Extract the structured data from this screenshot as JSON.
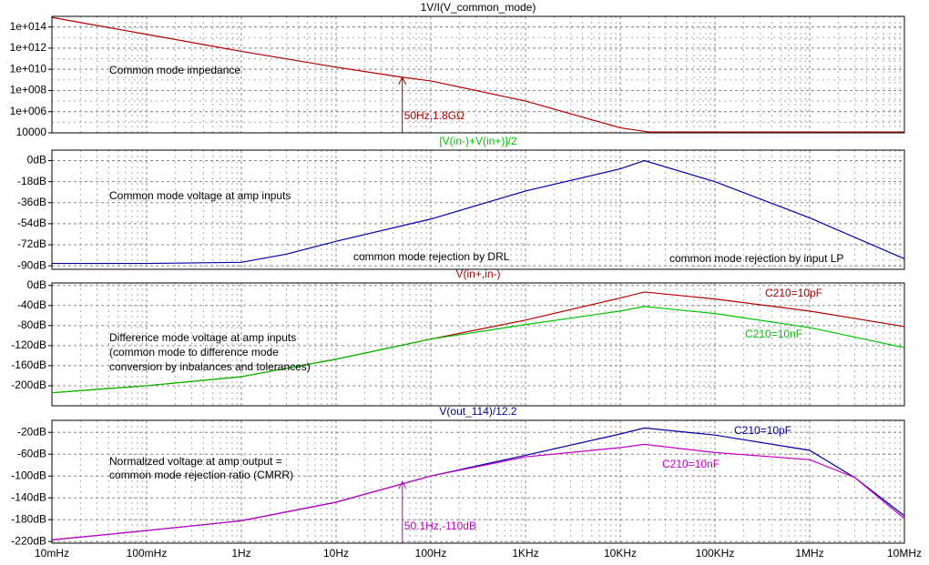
{
  "chart_data": [
    {
      "type": "line",
      "title": "1V/I(V_common_mode)",
      "title_color": "#000000",
      "xscale": "log",
      "yscale": "log",
      "grid": true,
      "xlim": [
        0.01,
        10000000
      ],
      "ylim": [
        10000,
        1000000000000000.0
      ],
      "yticks": [
        {
          "value": 100000000000000.0,
          "label": "1e+014"
        },
        {
          "value": 1000000000000.0,
          "label": "1e+012"
        },
        {
          "value": 10000000000.0,
          "label": "1e+010"
        },
        {
          "value": 100000000.0,
          "label": "1e+008"
        },
        {
          "value": 1000000.0,
          "label": "1e+006"
        },
        10000
      ],
      "x": [
        0.01,
        0.1,
        1,
        10,
        50,
        100,
        1000,
        10000,
        20000,
        100000,
        1000000,
        10000000
      ],
      "series": [
        {
          "name": "1V/I(V_common_mode)",
          "color": "#b00000",
          "values": [
            800000000000000.0,
            20000000000000.0,
            500000000000.0,
            16000000000.0,
            1800000000.0,
            800000000.0,
            10000000.0,
            30000,
            12000,
            12000,
            12000,
            12000
          ]
        }
      ],
      "annotations": [
        "Common mode impedance"
      ],
      "marker": {
        "x": 50,
        "y": 1800000000.0,
        "label": "50Hz,1.8GΩ",
        "color": "#b00000"
      }
    },
    {
      "type": "line",
      "title": "[V(in-)+V(in+)]/2",
      "title_color": "#00c000",
      "xscale": "log",
      "grid": true,
      "xlim": [
        0.01,
        10000000
      ],
      "ylim": [
        -93,
        9
      ],
      "yticks": [
        {
          "value": 0,
          "label": "0dB"
        },
        {
          "value": -18,
          "label": "-18dB"
        },
        {
          "value": -36,
          "label": "-36dB"
        },
        {
          "value": -54,
          "label": "-54dB"
        },
        {
          "value": -72,
          "label": "-72dB"
        },
        {
          "value": -90,
          "label": "-90dB"
        }
      ],
      "x": [
        0.01,
        0.1,
        1,
        3,
        10,
        100,
        1000,
        10000,
        18000,
        100000,
        1000000,
        10000000
      ],
      "series": [
        {
          "name": "[V(in-)+V(in+)]/2",
          "color": "#0000a0",
          "values": [
            -88,
            -88,
            -87,
            -80,
            -69,
            -50,
            -26,
            -7,
            0,
            -18,
            -49,
            -84
          ]
        }
      ],
      "annotations": [
        "Common mode voltage at amp inputs",
        "common mode rejection by DRL",
        "common mode rejection by input LP"
      ]
    },
    {
      "type": "line",
      "title": "V(in+,in-)",
      "title_color": "#b00000",
      "xscale": "log",
      "grid": true,
      "legend": true,
      "xlim": [
        0.01,
        10000000
      ],
      "ylim": [
        -240,
        5
      ],
      "yticks": [
        {
          "value": 0,
          "label": "0dB"
        },
        {
          "value": -40,
          "label": "-40dB"
        },
        {
          "value": -80,
          "label": "-80dB"
        },
        {
          "value": -120,
          "label": "-120dB"
        },
        {
          "value": -160,
          "label": "-160dB"
        },
        {
          "value": -200,
          "label": "-200dB"
        }
      ],
      "x": [
        0.01,
        0.1,
        1,
        10,
        100,
        1000,
        10000,
        18000,
        100000,
        1000000,
        10000000
      ],
      "series": [
        {
          "name": "C210=10pF",
          "color": "#b00000",
          "values": [
            -214,
            -200,
            -182,
            -147,
            -107,
            -69,
            -25,
            -13,
            -27,
            -51,
            -82
          ]
        },
        {
          "name": "C210=10nF",
          "color": "#00c000",
          "values": [
            -214,
            -200,
            -182,
            -147,
            -107,
            -78,
            -51,
            -42,
            -56,
            -84,
            -124
          ]
        }
      ],
      "annotations": [
        "Difference mode voltage at amp inputs",
        "(common mode to difference mode",
        "conversion by inbalances and tolerances)"
      ]
    },
    {
      "type": "line",
      "title": "V(out_114)/12.2",
      "title_color": "#0000a0",
      "xscale": "log",
      "grid": true,
      "legend": true,
      "xlim": [
        0.01,
        10000000
      ],
      "ylim": [
        -223,
        2
      ],
      "xticks": [
        {
          "value": 0.01,
          "label": "10mHz"
        },
        {
          "value": 0.1,
          "label": "100mHz"
        },
        {
          "value": 1,
          "label": "1Hz"
        },
        {
          "value": 10,
          "label": "10Hz"
        },
        {
          "value": 100,
          "label": "100Hz"
        },
        {
          "value": 1000,
          "label": "1KHz"
        },
        {
          "value": 10000,
          "label": "10KHz"
        },
        {
          "value": 100000,
          "label": "100KHz"
        },
        {
          "value": 1000000,
          "label": "1MHz"
        },
        {
          "value": 10000000,
          "label": "10MHz"
        }
      ],
      "yticks": [
        {
          "value": -20,
          "label": "-20dB"
        },
        {
          "value": -60,
          "label": "-60dB"
        },
        {
          "value": -100,
          "label": "-100dB"
        },
        {
          "value": -140,
          "label": "-140dB"
        },
        {
          "value": -180,
          "label": "-180dB"
        },
        {
          "value": -220,
          "label": "-220dB"
        }
      ],
      "x": [
        0.01,
        0.1,
        1,
        10,
        100,
        1000,
        10000,
        18000,
        100000,
        1000000,
        3000000,
        10000000
      ],
      "series": [
        {
          "name": "C210=10pF",
          "color": "#0000a0",
          "values": [
            -217,
            -200,
            -182,
            -148,
            -100,
            -62,
            -23,
            -12,
            -25,
            -53,
            -103,
            -173
          ]
        },
        {
          "name": "C210=10nF",
          "color": "#c000c0",
          "values": [
            -217,
            -200,
            -182,
            -148,
            -100,
            -65,
            -48,
            -42,
            -57,
            -70,
            -103,
            -178
          ]
        }
      ],
      "annotations": [
        "Normalized voltage at amp output =",
        "common mode rejection ratio (CMRR)"
      ],
      "marker": {
        "x": 50.1,
        "y": -110,
        "label": "50.1Hz,-110dB",
        "color": "#c000c0"
      }
    }
  ]
}
